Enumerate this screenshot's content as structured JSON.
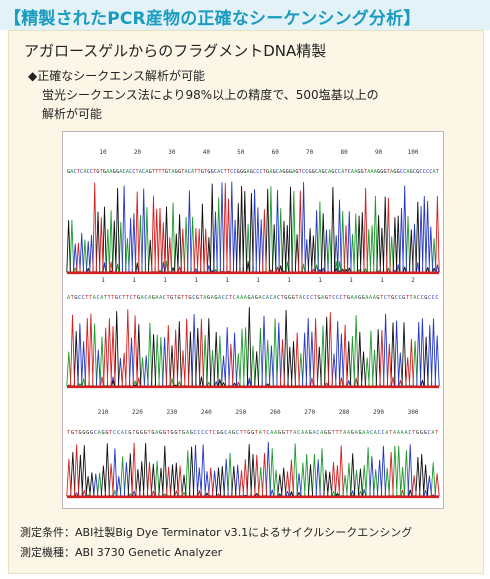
{
  "header": {
    "title": "【精製されたPCR産物の正確なシーケンシング分析】"
  },
  "section": {
    "subtitle": "アガロースゲルからのフラグメントDNA精製",
    "bullet": "◆正確なシークエンス解析が可能",
    "desc_line1": "蛍光シークエンス法により98%以上の精度で、500塩基以上の",
    "desc_line2": "解析が可能"
  },
  "figure": {
    "panels": [
      {
        "ticks": [
          "10",
          "20",
          "30",
          "40",
          "50",
          "60",
          "70",
          "80",
          "90",
          "100"
        ],
        "bases": "GACTCACCTGTGAAGGACACCTACAGTTTTGTAGGTACATTGTGGCACTTCCGGGAGCCCTGAGCAGGGAGTCCGGCAGCAGCCATCAAGGTAAAGGGTAGGCCAGCGCCCCAT"
      },
      {
        "ticks": [
          "1",
          "1",
          "1",
          "1",
          "1",
          "1",
          "1",
          "1",
          "1",
          "1",
          "2"
        ],
        "bases": "ATGCCTTACATTTGCTTCTGACAGAACTGTGTTGCGTAGAGACCTCAAAGAGACACACTGGGTACCCTGAGTCCCTGAAGGAAAGTCTGCCGTTACCGCCC"
      },
      {
        "ticks": [
          "210",
          "220",
          "230",
          "240",
          "250",
          "260",
          "270",
          "280",
          "290",
          "300"
        ],
        "bases": "TGTGGGGCAGGTCCACGTGGGTGAGGTGGTGAGCCCCTCGGCAGCTTGGTATCAAGGTTACAAGACAGGTTTAAGAGAACACCATAAAACTGGGCAT"
      }
    ],
    "colors": {
      "A": "#1f9a2e",
      "C": "#2437c7",
      "G": "#111111",
      "T": "#d42020"
    }
  },
  "footer": {
    "condition": "測定条件：ABI社製Big Dye Terminator v3.1によるサイクルシークエンシング",
    "instrument": "測定機種：ABI 3730 Genetic Analyzer"
  }
}
